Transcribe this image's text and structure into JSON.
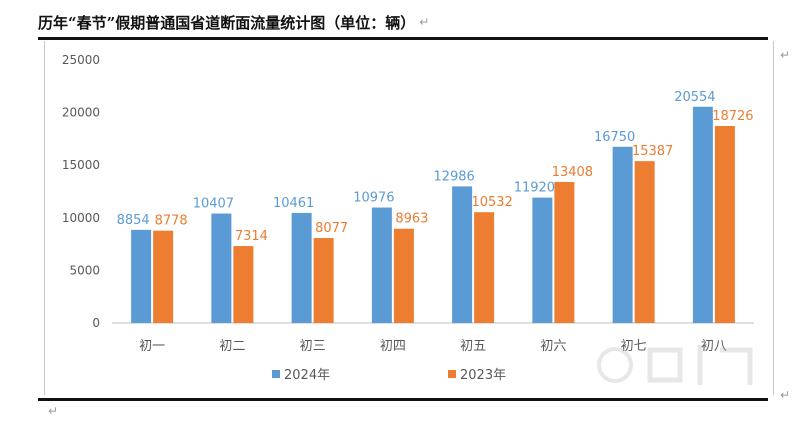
{
  "document": {
    "title": "历年“春节”假期普通国省道断面流量统计图（单位：辆）",
    "para_mark": "↵"
  },
  "colors": {
    "series_2024": "#5B9BD5",
    "series_2023": "#ED7D31"
  },
  "chart_data": {
    "type": "bar",
    "title": "",
    "xlabel": "",
    "ylabel": "",
    "ylim": [
      0,
      25000
    ],
    "yticks": [
      0,
      5000,
      10000,
      15000,
      20000,
      25000
    ],
    "grid": false,
    "legend_position": "bottom",
    "categories": [
      "初一",
      "初二",
      "初三",
      "初四",
      "初五",
      "初六",
      "初七",
      "初八"
    ],
    "series": [
      {
        "name": "2024年",
        "color": "#5B9BD5",
        "values": [
          8854,
          10407,
          10461,
          10976,
          12986,
          11920,
          16750,
          20554
        ]
      },
      {
        "name": "2023年",
        "color": "#ED7D31",
        "values": [
          8778,
          7314,
          8077,
          8963,
          10532,
          13408,
          15387,
          18726
        ]
      }
    ]
  }
}
